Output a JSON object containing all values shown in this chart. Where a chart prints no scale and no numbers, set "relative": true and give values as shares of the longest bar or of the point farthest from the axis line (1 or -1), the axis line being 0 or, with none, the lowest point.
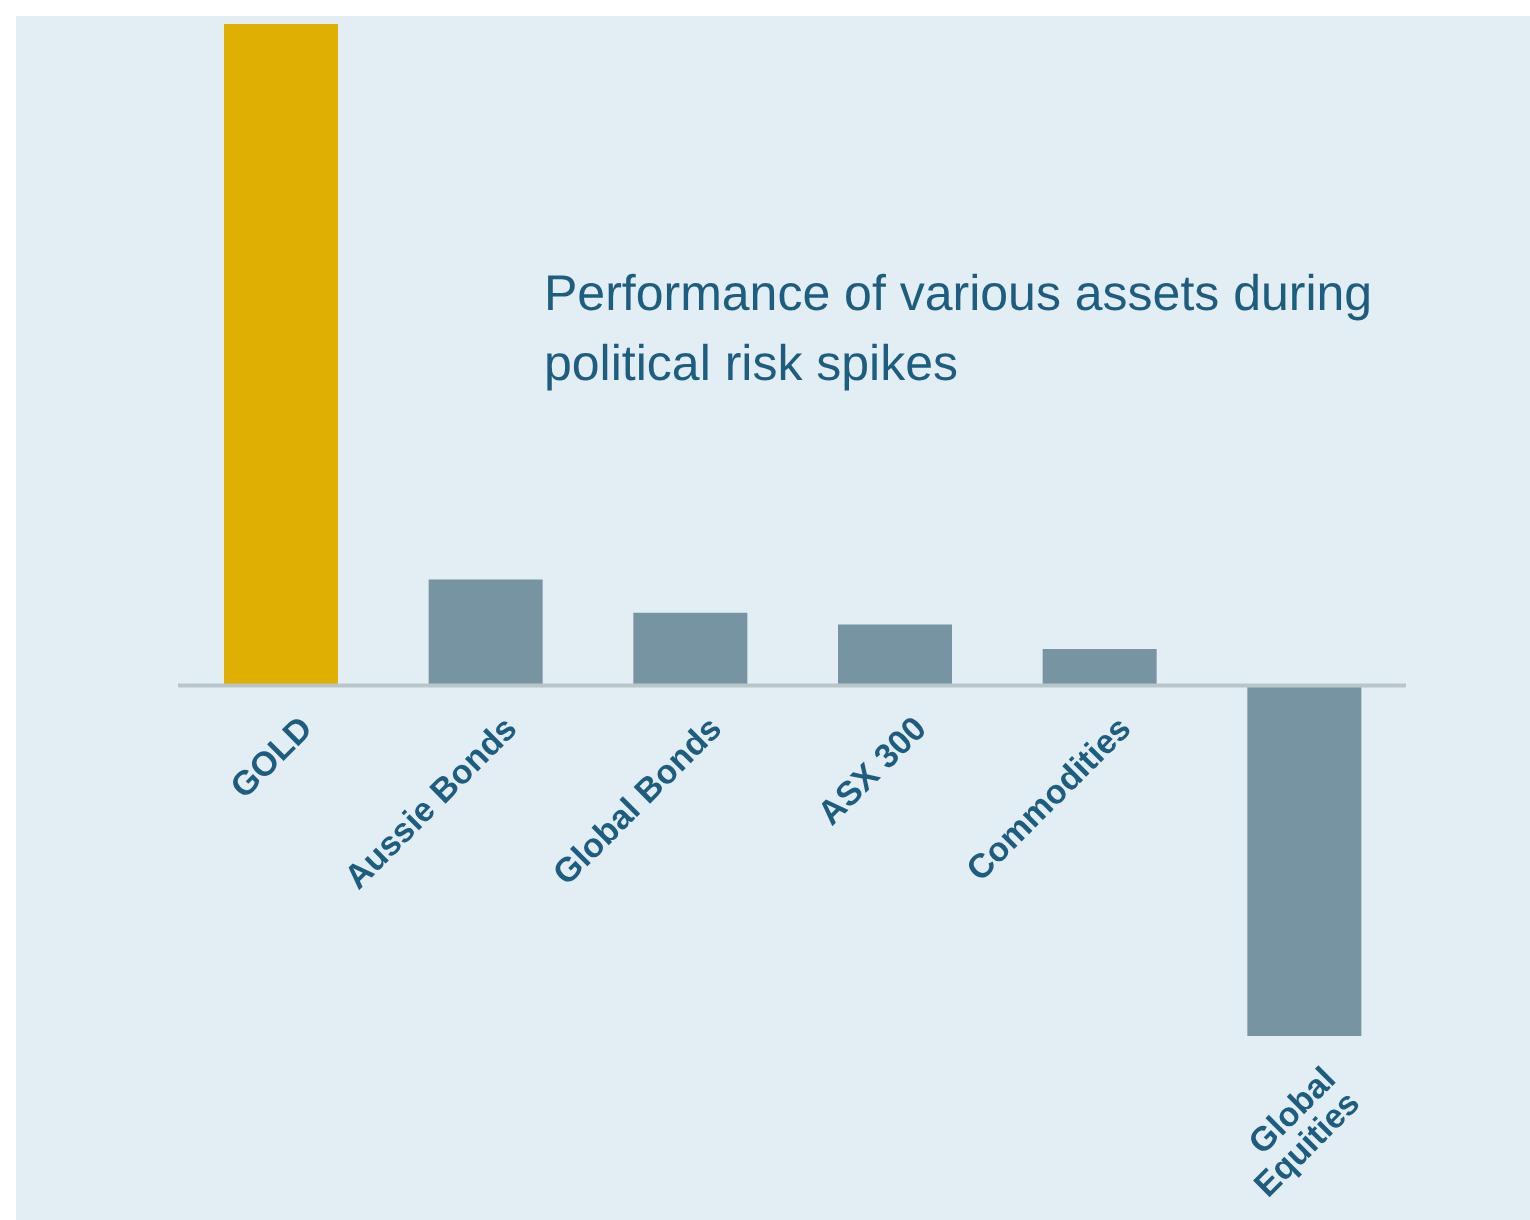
{
  "chart_data": {
    "type": "bar",
    "relative": true,
    "title": "Performance of various assets during political risk spikes",
    "categories": [
      "GOLD",
      "Aussie Bonds",
      "Global  Bonds",
      "ASX 300",
      "Commodities",
      "Global Equities"
    ],
    "values": [
      1,
      0.16,
      0.11,
      0.092,
      0.055,
      -0.53
    ],
    "colors": [
      "#dfb001",
      "#7794a3",
      "#7794a3",
      "#7794a3",
      "#7794a3",
      "#7794a3"
    ]
  }
}
